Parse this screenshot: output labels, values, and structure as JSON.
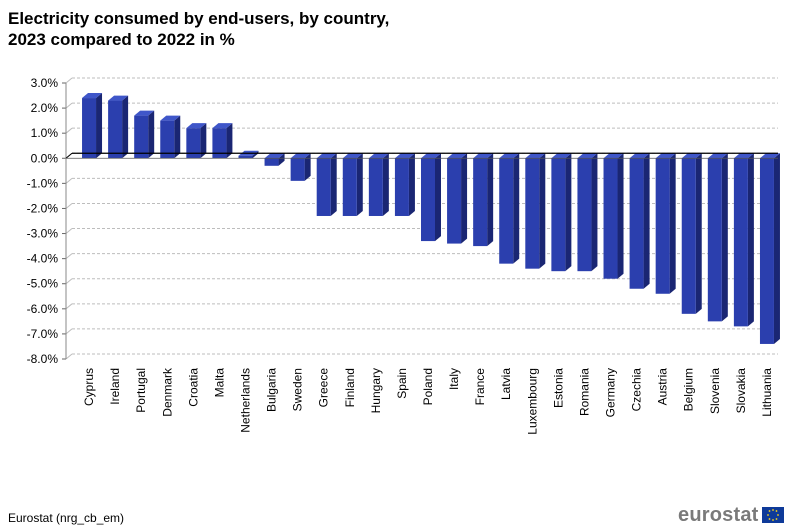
{
  "title_line1": "Electricity consumed by end-users, by country,",
  "title_line2": "2023 compared to 2022 in %",
  "source": "Eurostat (nrg_cb_em)",
  "logo_text": "eurostat",
  "colors": {
    "bar_front": "#2b3fae",
    "bar_side": "#1a2673",
    "bar_top": "#3f56c9",
    "grid": "#bdbdbd"
  },
  "chart_data": {
    "type": "bar",
    "title": "Electricity consumed by end-users, by country, 2023 compared to 2022 in %",
    "xlabel": "",
    "ylabel": "",
    "ylim": [
      -8,
      3
    ],
    "yticks": [
      3,
      2,
      1,
      0,
      -1,
      -2,
      -3,
      -4,
      -5,
      -6,
      -7,
      -8
    ],
    "ytick_labels": [
      "3.0%",
      "2.0%",
      "1.0%",
      "0.0%",
      "-1.0%",
      "-2.0%",
      "-3.0%",
      "-4.0%",
      "-5.0%",
      "-6.0%",
      "-7.0%",
      "-8.0%"
    ],
    "categories": [
      "Cyprus",
      "Ireland",
      "Portugal",
      "Denmark",
      "Croatia",
      "Malta",
      "Netherlands",
      "Bulgaria",
      "Sweden",
      "Greece",
      "Finland",
      "Hungary",
      "Spain",
      "Poland",
      "Italy",
      "France",
      "Latvia",
      "Luxembourg",
      "Estonia",
      "Romania",
      "Germany",
      "Czechia",
      "Austria",
      "Belgium",
      "Slovenia",
      "Slovakia",
      "Lithuania"
    ],
    "values": [
      2.4,
      2.3,
      1.7,
      1.5,
      1.2,
      1.2,
      0.1,
      -0.3,
      -0.9,
      -2.3,
      -2.3,
      -2.3,
      -2.3,
      -3.3,
      -3.4,
      -3.5,
      -4.2,
      -4.4,
      -4.5,
      -4.5,
      -4.8,
      -5.2,
      -5.4,
      -6.2,
      -6.5,
      -6.7,
      -7.4
    ],
    "grid": true,
    "legend": "none"
  }
}
